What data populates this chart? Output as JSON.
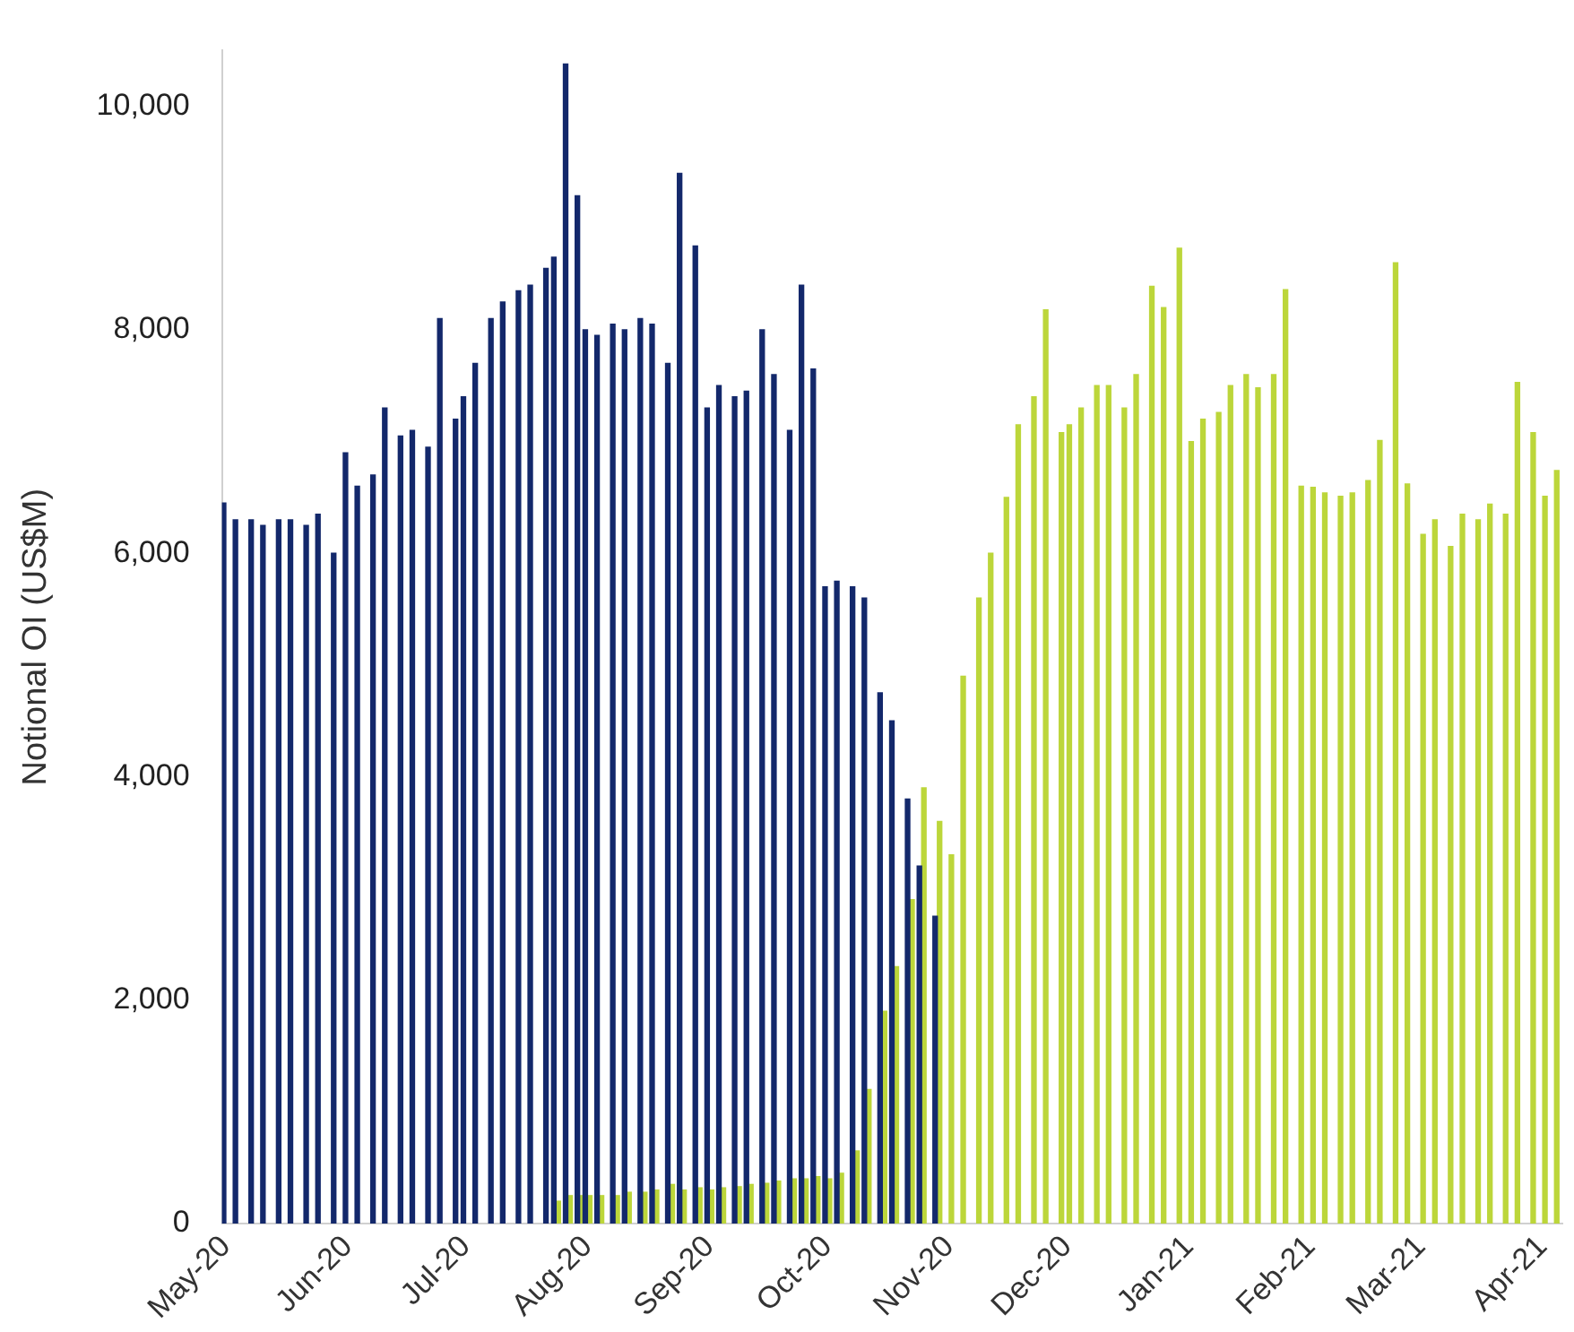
{
  "chart_data": {
    "type": "bar",
    "ylabel": "Notional OI (US$M)",
    "x": [
      "2020-05-01",
      "2020-05-04",
      "2020-05-08",
      "2020-05-11",
      "2020-05-15",
      "2020-05-18",
      "2020-05-22",
      "2020-05-25",
      "2020-05-29",
      "2020-06-01",
      "2020-06-04",
      "2020-06-08",
      "2020-06-11",
      "2020-06-15",
      "2020-06-18",
      "2020-06-22",
      "2020-06-25",
      "2020-06-29",
      "2020-07-01",
      "2020-07-04",
      "2020-07-08",
      "2020-07-11",
      "2020-07-15",
      "2020-07-18",
      "2020-07-22",
      "2020-07-24",
      "2020-07-27",
      "2020-07-30",
      "2020-08-01",
      "2020-08-04",
      "2020-08-08",
      "2020-08-11",
      "2020-08-15",
      "2020-08-18",
      "2020-08-22",
      "2020-08-25",
      "2020-08-29",
      "2020-09-01",
      "2020-09-04",
      "2020-09-08",
      "2020-09-11",
      "2020-09-15",
      "2020-09-18",
      "2020-09-22",
      "2020-09-25",
      "2020-09-28",
      "2020-10-01",
      "2020-10-04",
      "2020-10-08",
      "2020-10-11",
      "2020-10-15",
      "2020-10-18",
      "2020-10-22",
      "2020-10-25",
      "2020-10-29",
      "2020-11-01",
      "2020-11-04",
      "2020-11-08",
      "2020-11-11",
      "2020-11-15",
      "2020-11-18",
      "2020-11-22",
      "2020-11-25",
      "2020-11-29",
      "2020-12-01",
      "2020-12-04",
      "2020-12-08",
      "2020-12-11",
      "2020-12-15",
      "2020-12-18",
      "2020-12-22",
      "2020-12-25",
      "2020-12-29",
      "2021-01-01",
      "2021-01-04",
      "2021-01-08",
      "2021-01-11",
      "2021-01-15",
      "2021-01-18",
      "2021-01-22",
      "2021-01-25",
      "2021-01-29",
      "2021-02-01",
      "2021-02-04",
      "2021-02-08",
      "2021-02-11",
      "2021-02-15",
      "2021-02-18",
      "2021-02-22",
      "2021-02-25",
      "2021-03-01",
      "2021-03-04",
      "2021-03-08",
      "2021-03-11",
      "2021-03-15",
      "2021-03-18",
      "2021-03-22",
      "2021-03-25",
      "2021-03-29",
      "2021-04-01",
      "2021-04-04"
    ],
    "series": [
      {
        "color": "#13286b",
        "values": [
          6450,
          6300,
          6300,
          6250,
          6300,
          6300,
          6250,
          6350,
          6000,
          6900,
          6600,
          6700,
          7300,
          7050,
          7100,
          6950,
          8100,
          7200,
          7400,
          7700,
          8100,
          8250,
          8350,
          8400,
          8550,
          8650,
          10380,
          9200,
          8000,
          7950,
          8050,
          8000,
          8100,
          8050,
          7700,
          9400,
          8750,
          7300,
          7500,
          7400,
          7450,
          8000,
          7600,
          7100,
          8400,
          7650,
          5700,
          5750,
          5700,
          5600,
          4750,
          4500,
          3800,
          3200,
          2750,
          null,
          null,
          null,
          null,
          null,
          null,
          null,
          null,
          null,
          null,
          null,
          null,
          null,
          null,
          null,
          null,
          null,
          null,
          null,
          null,
          null,
          null,
          null,
          null,
          null,
          null,
          null,
          null,
          null,
          null,
          null,
          null,
          null,
          null,
          null,
          null,
          null,
          null,
          null,
          null,
          null,
          null,
          null,
          null,
          null,
          null
        ]
      },
      {
        "color": "#bcd63a",
        "values": [
          null,
          null,
          null,
          null,
          null,
          null,
          null,
          null,
          null,
          null,
          null,
          null,
          null,
          null,
          null,
          null,
          null,
          null,
          null,
          null,
          null,
          null,
          null,
          null,
          null,
          200,
          250,
          250,
          250,
          250,
          250,
          280,
          280,
          300,
          350,
          300,
          320,
          300,
          320,
          330,
          350,
          360,
          380,
          400,
          400,
          420,
          400,
          450,
          650,
          1200,
          1900,
          2300,
          2900,
          3900,
          3600,
          3300,
          4900,
          5600,
          6000,
          6500,
          7150,
          7400,
          8180,
          7080,
          7150,
          7300,
          7500,
          7500,
          7300,
          7600,
          8390,
          8200,
          8730,
          7000,
          7200,
          7260,
          7500,
          7600,
          7480,
          7600,
          8360,
          6600,
          6590,
          6540,
          6510,
          6540,
          6650,
          7010,
          8600,
          6620,
          6170,
          6300,
          6060,
          6350,
          6300,
          6440,
          6350,
          7530,
          7080,
          6510,
          6740
        ]
      }
    ],
    "xlim": [
      "2020-04-30",
      "2021-04-06"
    ],
    "xticks": [
      {
        "value": "2020-05-01",
        "label": "May-20"
      },
      {
        "value": "2020-06-01",
        "label": "Jun-20"
      },
      {
        "value": "2020-07-01",
        "label": "Jul-20"
      },
      {
        "value": "2020-08-01",
        "label": "Aug-20"
      },
      {
        "value": "2020-09-01",
        "label": "Sep-20"
      },
      {
        "value": "2020-10-01",
        "label": "Oct-20"
      },
      {
        "value": "2020-11-01",
        "label": "Nov-20"
      },
      {
        "value": "2020-12-01",
        "label": "Dec-20"
      },
      {
        "value": "2021-01-01",
        "label": "Jan-21"
      },
      {
        "value": "2021-02-01",
        "label": "Feb-21"
      },
      {
        "value": "2021-03-01",
        "label": "Mar-21"
      },
      {
        "value": "2021-04-01",
        "label": "Apr-21"
      }
    ],
    "ylim": [
      0,
      10500
    ],
    "yticks": [
      {
        "value": 0,
        "label": "0"
      },
      {
        "value": 2000,
        "label": "2,000"
      },
      {
        "value": 4000,
        "label": "4,000"
      },
      {
        "value": 6000,
        "label": "6,000"
      },
      {
        "value": 8000,
        "label": "8,000"
      },
      {
        "value": 10000,
        "label": "10,000"
      }
    ],
    "grid": false,
    "legend": false
  }
}
